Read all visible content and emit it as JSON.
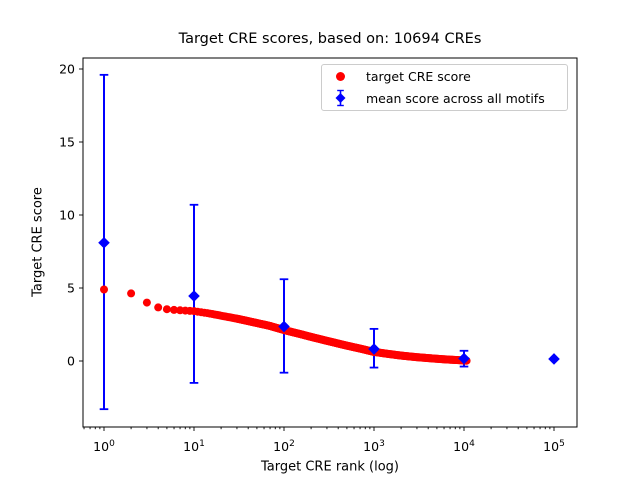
{
  "chart_data": {
    "type": "scatter",
    "title": "Target CRE scores, based on: 10694 CREs",
    "xlabel": "Target CRE rank (log)",
    "ylabel": "Target CRE score",
    "x_scale": "log",
    "x_tick_base": "10",
    "x_tick_exponents": [
      0,
      1,
      2,
      3,
      4,
      5
    ],
    "y_ticks": [
      0,
      5,
      10,
      15,
      20
    ],
    "xlim_log10": [
      -0.233,
      5.256
    ],
    "ylim": [
      -4.52,
      20.75
    ],
    "grid": false,
    "legend_position": "upper right",
    "n_cres": 10694,
    "series": [
      {
        "name": "target CRE score",
        "type": "scatter_dense",
        "marker": "circle",
        "color": "#ff0000",
        "n_points": 10694,
        "anchors": [
          [
            1,
            4.9
          ],
          [
            2,
            4.63
          ],
          [
            3,
            4.0
          ],
          [
            4,
            3.67
          ],
          [
            5,
            3.55
          ],
          [
            6,
            3.5
          ],
          [
            8,
            3.45
          ],
          [
            10,
            3.42
          ],
          [
            15,
            3.25
          ],
          [
            20,
            3.1
          ],
          [
            30,
            2.9
          ],
          [
            50,
            2.6
          ],
          [
            70,
            2.4
          ],
          [
            100,
            2.12
          ],
          [
            150,
            1.85
          ],
          [
            200,
            1.65
          ],
          [
            300,
            1.38
          ],
          [
            500,
            1.05
          ],
          [
            700,
            0.85
          ],
          [
            1000,
            0.62
          ],
          [
            1500,
            0.47
          ],
          [
            2000,
            0.37
          ],
          [
            3000,
            0.26
          ],
          [
            5000,
            0.15
          ],
          [
            7000,
            0.09
          ],
          [
            10000,
            0.04
          ],
          [
            10694,
            0.02
          ]
        ]
      },
      {
        "name": "mean score across all motifs",
        "type": "errorbar",
        "marker": "diamond",
        "color": "#0000ff",
        "points": [
          {
            "rank": 1,
            "mean": 8.1,
            "lo": -3.3,
            "hi": 19.6
          },
          {
            "rank": 10,
            "mean": 4.45,
            "lo": -1.5,
            "hi": 10.7
          },
          {
            "rank": 100,
            "mean": 2.36,
            "lo": -0.8,
            "hi": 5.6
          },
          {
            "rank": 1000,
            "mean": 0.82,
            "lo": -0.45,
            "hi": 2.2
          },
          {
            "rank": 10000,
            "mean": 0.17,
            "lo": -0.38,
            "hi": 0.7
          },
          {
            "rank": 100000,
            "mean": 0.14,
            "lo": 0.0,
            "hi": 0.25
          }
        ]
      }
    ]
  }
}
